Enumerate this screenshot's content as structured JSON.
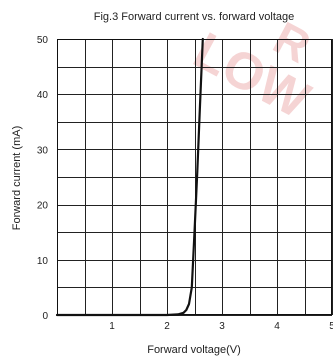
{
  "colors": {
    "line": "#111111",
    "grid": "#222222",
    "watermark": "#e87a7a"
  },
  "watermark": {
    "lines": [
      "R",
      "LOW"
    ]
  },
  "chart_data": {
    "type": "line",
    "title": "Fig.3 Forward current vs. forward voltage",
    "xlabel": "Forward voltage(V)",
    "ylabel": "Forward current (mA)",
    "xlim": [
      0,
      5
    ],
    "ylim": [
      0,
      50
    ],
    "xticks": [
      1,
      2,
      3,
      4,
      5
    ],
    "yticks": [
      0,
      10,
      20,
      30,
      40,
      50
    ],
    "grid": true,
    "minor_grid_x": 0.5,
    "minor_grid_y": 5,
    "series": [
      {
        "x": [
          0,
          1.0,
          2.0,
          2.2,
          2.3,
          2.35,
          2.4,
          2.45,
          2.5,
          2.55,
          2.6,
          2.65
        ],
        "y": [
          0,
          0,
          0,
          0.1,
          0.4,
          0.9,
          2.0,
          5,
          15,
          26,
          38,
          50
        ]
      }
    ]
  }
}
